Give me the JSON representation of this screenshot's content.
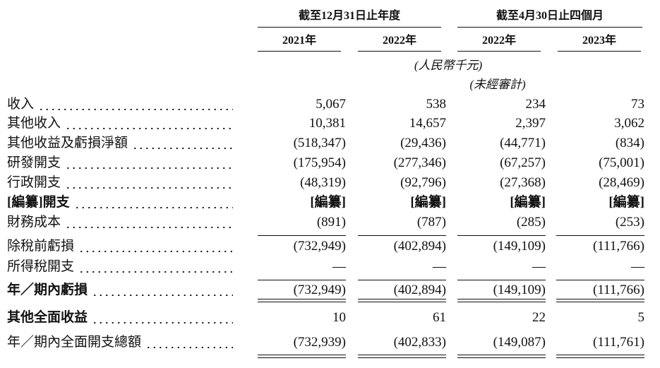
{
  "table": {
    "group_headers": [
      "截至12月31日止年度",
      "截至4月30日止四個月"
    ],
    "years": [
      "2021年",
      "2022年",
      "2022年",
      "2023年"
    ],
    "unit": "(人民幣千元)",
    "unaudited": "(未經審計)",
    "rows": [
      {
        "label": "收入",
        "values": [
          "5,067",
          "538",
          "234",
          "73"
        ]
      },
      {
        "label": "其他收入",
        "values": [
          "10,381",
          "14,657",
          "2,397",
          "3,062"
        ]
      },
      {
        "label": "其他收益及虧損淨額",
        "values": [
          "(518,347)",
          "(29,436)",
          "(44,771)",
          "(834)"
        ]
      },
      {
        "label": "研發開支",
        "values": [
          "(175,954)",
          "(277,346)",
          "(67,257)",
          "(75,001)"
        ]
      },
      {
        "label": "行政開支",
        "values": [
          "(48,319)",
          "(92,796)",
          "(27,368)",
          "(28,469)"
        ]
      },
      {
        "label": "[編纂]開支",
        "values": [
          "[編纂]",
          "[編纂]",
          "[編纂]",
          "[編纂]"
        ]
      },
      {
        "label": "財務成本",
        "values": [
          "(891)",
          "(787)",
          "(285)",
          "(253)"
        ]
      },
      {
        "label": "除稅前虧損",
        "values": [
          "(732,949)",
          "(402,894)",
          "(149,109)",
          "(111,766)"
        ]
      },
      {
        "label": "所得稅開支",
        "values": [
          "—",
          "—",
          "—",
          "—"
        ]
      },
      {
        "label": "年／期內虧損",
        "values": [
          "(732,949)",
          "(402,894)",
          "(149,109)",
          "(111,766)"
        ]
      },
      {
        "label": "其他全面收益",
        "values": [
          "10",
          "61",
          "22",
          "5"
        ]
      },
      {
        "label": "年／期內全面開支總額",
        "values": [
          "(732,939)",
          "(402,833)",
          "(149,087)",
          "(111,761)"
        ]
      }
    ]
  }
}
